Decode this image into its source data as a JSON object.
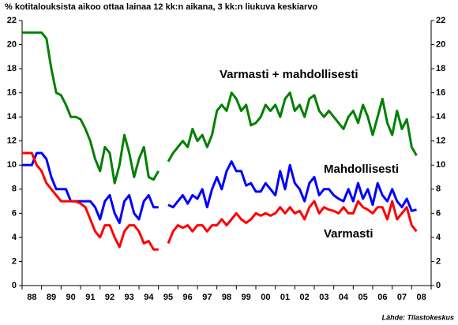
{
  "chart_data": {
    "type": "line",
    "title": "% kotitalouksista aikoo ottaa lainaa 12 kk:n aikana, 3 kk:n liukuva keskiarvo",
    "source": "Lähde: Tilastokeskus",
    "x": [
      1988,
      1988.25,
      1988.5,
      1988.75,
      1989,
      1989.25,
      1989.5,
      1989.75,
      1990,
      1990.25,
      1990.5,
      1990.75,
      1991,
      1991.25,
      1991.5,
      1991.75,
      1992,
      1992.25,
      1992.5,
      1992.75,
      1993,
      1993.25,
      1993.5,
      1993.75,
      1994,
      1994.25,
      1994.5,
      1994.75,
      1995,
      1995.25,
      1995.5,
      1995.75,
      1996,
      1996.25,
      1996.5,
      1996.75,
      1997,
      1997.25,
      1997.5,
      1997.75,
      1998,
      1998.25,
      1998.5,
      1998.75,
      1999,
      1999.25,
      1999.5,
      1999.75,
      2000,
      2000.25,
      2000.5,
      2000.75,
      2001,
      2001.25,
      2001.5,
      2001.75,
      2002,
      2002.25,
      2002.5,
      2002.75,
      2003,
      2003.25,
      2003.5,
      2003.75,
      2004,
      2004.25,
      2004.5,
      2004.75,
      2005,
      2005.25,
      2005.5,
      2005.75,
      2006,
      2006.25,
      2006.5,
      2006.75,
      2007,
      2007.25,
      2007.5,
      2007.75,
      2008,
      2008.25
    ],
    "series": [
      {
        "name": "Varmasti + mahdollisesti",
        "color": "#008000",
        "values": [
          21,
          21,
          21,
          21,
          21,
          20.5,
          18,
          16,
          15.8,
          15,
          14,
          14,
          13.8,
          13,
          12,
          10.5,
          9.5,
          11.5,
          11,
          8.5,
          10,
          12.5,
          11,
          9,
          10.5,
          11.5,
          9,
          8.8,
          9.5,
          null,
          10.3,
          11,
          11.5,
          12,
          11.5,
          13,
          12,
          12.5,
          11.5,
          12.5,
          14.5,
          15,
          14.5,
          16,
          15.5,
          14.5,
          15,
          13.3,
          13.5,
          14,
          15,
          14.5,
          15,
          14,
          15.5,
          16,
          14.5,
          15,
          14,
          15.5,
          15.8,
          14.5,
          14,
          14.5,
          14,
          13.5,
          13,
          14,
          14.5,
          13.5,
          15,
          14,
          12.5,
          14,
          15.5,
          13.5,
          12.5,
          14.5,
          13,
          13.8,
          11.5,
          10.8
        ]
      },
      {
        "name": "Mahdollisesti",
        "color": "#0000ff",
        "values": [
          10,
          10,
          10,
          11,
          11,
          10.5,
          9,
          8,
          8,
          8,
          7,
          7,
          7,
          7,
          7,
          6.5,
          5.5,
          7,
          7.5,
          6,
          5.2,
          7,
          7.5,
          6,
          5.5,
          7,
          7.5,
          6.5,
          6.5,
          null,
          6.7,
          6.5,
          7,
          7.5,
          6.8,
          7.5,
          7.2,
          8,
          6.5,
          8,
          9,
          8,
          9.5,
          10.3,
          9.5,
          9.5,
          8.3,
          8.5,
          7.8,
          7.8,
          8.5,
          8,
          7.5,
          9.5,
          8,
          10,
          8.5,
          8,
          7,
          8.5,
          9,
          7.5,
          8,
          8,
          7.5,
          7.2,
          7,
          8,
          7,
          8.5,
          7.2,
          8,
          6.7,
          8.5,
          7.5,
          7,
          8,
          7,
          6.5,
          7.2,
          6.2,
          6.3
        ]
      },
      {
        "name": "Varmasti",
        "color": "#ff0000",
        "values": [
          11,
          11,
          11,
          10,
          9.5,
          8.5,
          8,
          7.5,
          7,
          7,
          7,
          7,
          6.8,
          6.5,
          5.5,
          4.5,
          4,
          5,
          5,
          4,
          3.2,
          4.5,
          5,
          5,
          4.5,
          3.5,
          3.7,
          3,
          3,
          null,
          3.5,
          4.5,
          5,
          4.8,
          5,
          4.5,
          5,
          5,
          4.5,
          5,
          5,
          5.5,
          5,
          5.5,
          6,
          5.5,
          5.2,
          5.5,
          6,
          5.8,
          6,
          5.8,
          6,
          6.5,
          6,
          6.5,
          6,
          6.2,
          5.5,
          6.5,
          7,
          6,
          6.5,
          6.3,
          6.2,
          6,
          6.5,
          6,
          6,
          7,
          6.5,
          6.3,
          6,
          6.5,
          6.5,
          5.5,
          7,
          5.5,
          6,
          6.5,
          5,
          4.5
        ]
      }
    ],
    "xlim": [
      1988,
      2009
    ],
    "xticks": [
      {
        "value": 1988,
        "label": "88"
      },
      {
        "value": 1989,
        "label": "89"
      },
      {
        "value": 1990,
        "label": "90"
      },
      {
        "value": 1991,
        "label": "91"
      },
      {
        "value": 1992,
        "label": "92"
      },
      {
        "value": 1993,
        "label": "93"
      },
      {
        "value": 1994,
        "label": "94"
      },
      {
        "value": 1995,
        "label": "95"
      },
      {
        "value": 1996,
        "label": "96"
      },
      {
        "value": 1997,
        "label": "97"
      },
      {
        "value": 1998,
        "label": "98"
      },
      {
        "value": 1999,
        "label": "99"
      },
      {
        "value": 2000,
        "label": "00"
      },
      {
        "value": 2001,
        "label": "01"
      },
      {
        "value": 2002,
        "label": "02"
      },
      {
        "value": 2003,
        "label": "03"
      },
      {
        "value": 2004,
        "label": "04"
      },
      {
        "value": 2005,
        "label": "05"
      },
      {
        "value": 2006,
        "label": "06"
      },
      {
        "value": 2007,
        "label": "07"
      },
      {
        "value": 2008,
        "label": "08"
      }
    ],
    "ylim": [
      0,
      22
    ],
    "yticks": [
      0,
      2,
      4,
      6,
      8,
      10,
      12,
      14,
      16,
      18,
      20,
      22
    ],
    "y2lim": [
      0,
      22
    ],
    "y2ticks": [
      0,
      2,
      4,
      6,
      8,
      10,
      12,
      14,
      16,
      18,
      20,
      22
    ],
    "grid": false
  }
}
